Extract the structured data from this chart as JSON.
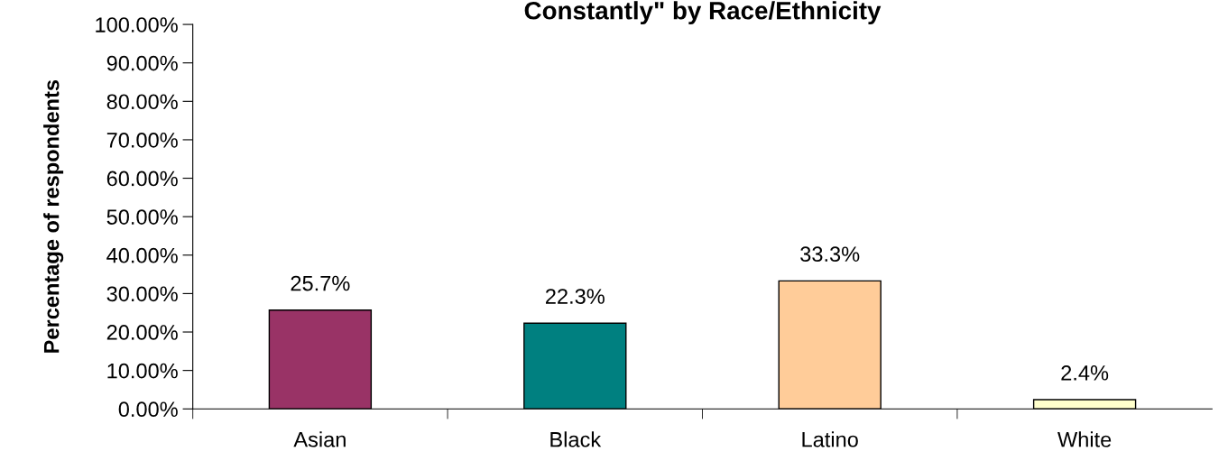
{
  "chart_data": {
    "type": "bar",
    "title": "Constantly\" by Race/Ethnicity",
    "ylabel": "Percentage of respondents",
    "categories": [
      "Asian",
      "Black",
      "Latino",
      "White"
    ],
    "values": [
      25.7,
      22.3,
      33.3,
      2.4
    ],
    "colors": [
      "#993366",
      "#008080",
      "#ffcc99",
      "#ffffcc"
    ],
    "value_labels": [
      "25.7%",
      "22.3%",
      "33.3%",
      "2.4%"
    ],
    "ylim": [
      0,
      100
    ],
    "yticks": [
      {
        "value": 0,
        "label": "0.00%"
      },
      {
        "value": 10,
        "label": "10.00%"
      },
      {
        "value": 20,
        "label": "20.00%"
      },
      {
        "value": 30,
        "label": "30.00%"
      },
      {
        "value": 40,
        "label": "40.00%"
      },
      {
        "value": 50,
        "label": "50.00%"
      },
      {
        "value": 60,
        "label": "60.00%"
      },
      {
        "value": 70,
        "label": "70.00%"
      },
      {
        "value": 80,
        "label": "80.00%"
      },
      {
        "value": 90,
        "label": "90.00%"
      },
      {
        "value": 100,
        "label": "100.00%"
      }
    ],
    "grid": false,
    "legend": false
  }
}
